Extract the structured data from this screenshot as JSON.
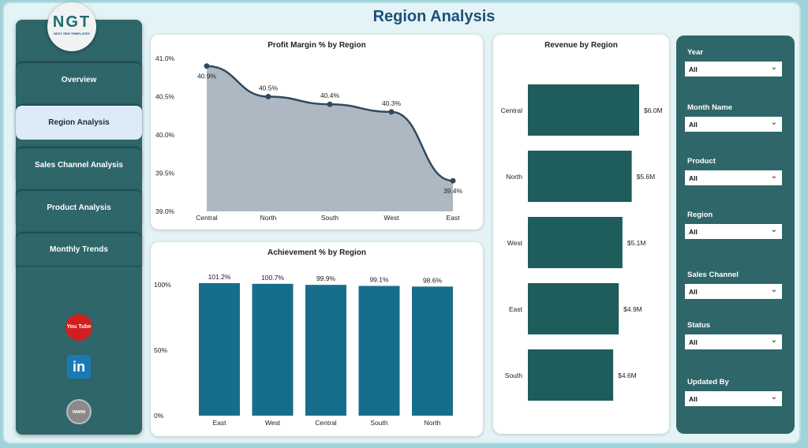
{
  "header": {
    "title": "Region Analysis"
  },
  "logo": {
    "text": "NGT",
    "subtext": "NEXT GEN TEMPLATES"
  },
  "sidebar": {
    "items": [
      {
        "label": "Overview"
      },
      {
        "label": "Region Analysis",
        "active": true
      },
      {
        "label": "Sales Channel Analysis"
      },
      {
        "label": "Product Analysis"
      },
      {
        "label": "Monthly Trends"
      }
    ],
    "social": [
      {
        "icon": "youtube-icon",
        "text": "You Tube"
      },
      {
        "icon": "linkedin-icon",
        "text": "in"
      },
      {
        "icon": "globe-icon",
        "text": "www"
      }
    ]
  },
  "chart_data": [
    {
      "type": "area",
      "title": "Profit Margin % by Region",
      "categories": [
        "Central",
        "North",
        "South",
        "West",
        "East"
      ],
      "values": [
        40.9,
        40.5,
        40.4,
        40.3,
        39.4
      ],
      "data_labels": [
        "40.9%",
        "40.5%",
        "40.4%",
        "40.3%",
        "39.4%"
      ],
      "ylim": [
        39.0,
        41.0
      ],
      "yticks": [
        "41.0%",
        "40.5%",
        "40.0%",
        "39.5%",
        "39.0%"
      ],
      "color": "#2f4a5e",
      "fill": "#aeb8c2"
    },
    {
      "type": "bar",
      "title": "Achievement % by Region",
      "categories": [
        "East",
        "West",
        "Central",
        "South",
        "North"
      ],
      "values": [
        101.2,
        100.7,
        99.9,
        99.1,
        98.6
      ],
      "data_labels": [
        "101.2%",
        "100.7%",
        "99.9%",
        "99.1%",
        "98.6%"
      ],
      "ylim": [
        0,
        120
      ],
      "yticks": [
        "100%",
        "50%",
        "0%"
      ],
      "color": "#176e8c"
    },
    {
      "type": "bar",
      "orientation": "horizontal",
      "title": "Revenue by Region",
      "categories": [
        "Central",
        "North",
        "West",
        "East",
        "South"
      ],
      "values": [
        6.0,
        5.6,
        5.1,
        4.9,
        4.6
      ],
      "data_labels": [
        "$6.0M",
        "$5.6M",
        "$5.1M",
        "$4.9M",
        "$4.6M"
      ],
      "color": "#1f5c5c"
    }
  ],
  "filters": [
    {
      "label": "Year",
      "value": "All"
    },
    {
      "label": "Month Name",
      "value": "All"
    },
    {
      "label": "Product",
      "value": "All"
    },
    {
      "label": "Region",
      "value": "All"
    },
    {
      "label": "Sales Channel",
      "value": "All"
    },
    {
      "label": "Status",
      "value": "All"
    },
    {
      "label": "Updated By",
      "value": "All"
    }
  ]
}
